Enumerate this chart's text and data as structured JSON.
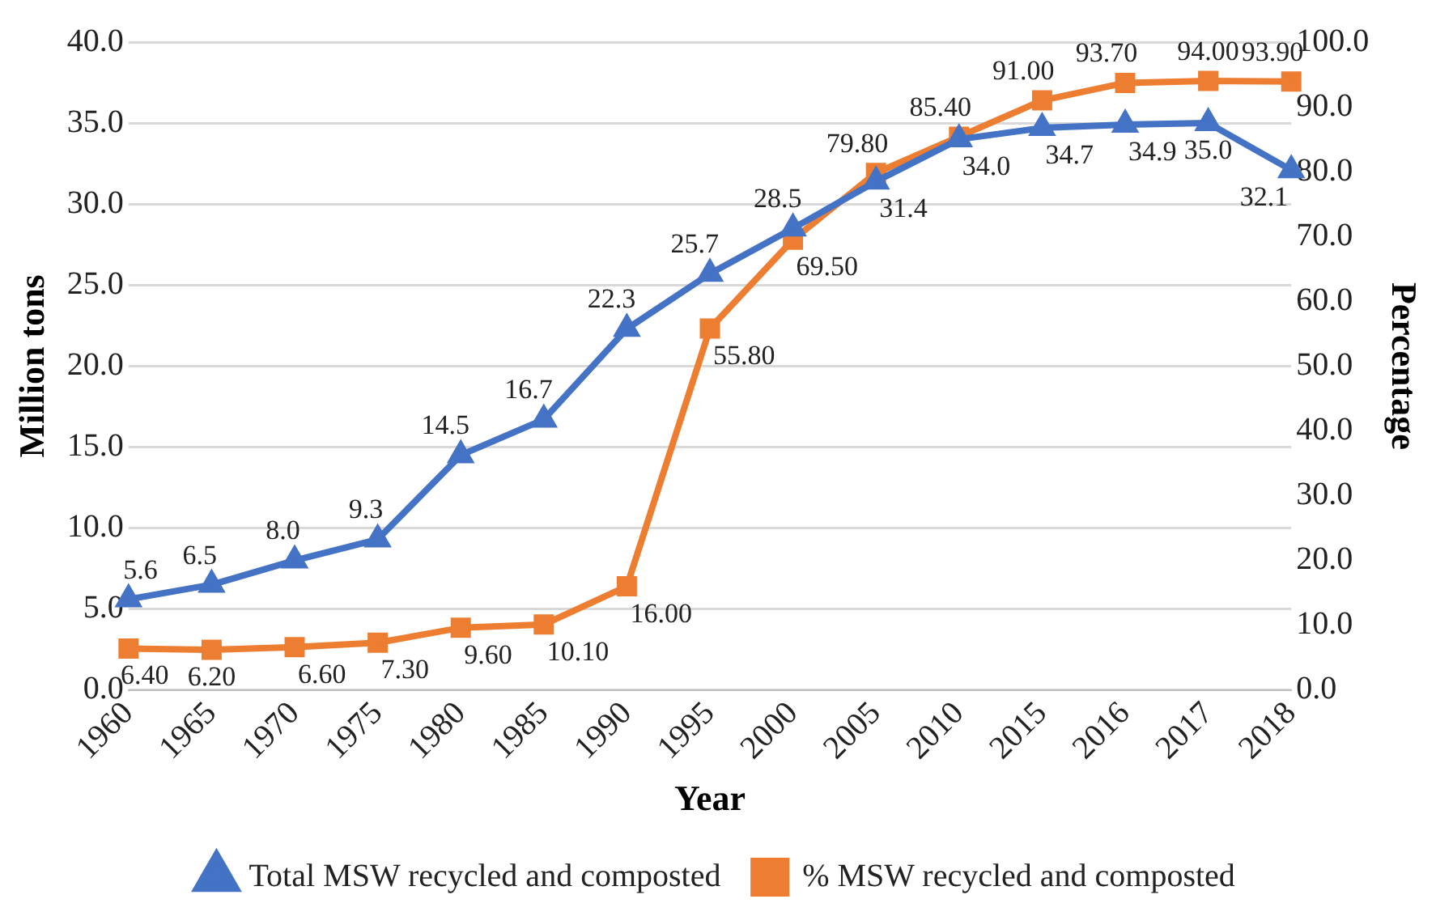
{
  "chart_data": {
    "type": "line",
    "xlabel": "Year",
    "ylabel": "Million tons",
    "y2label": "Percentage",
    "categories": [
      "1960",
      "1965",
      "1970",
      "1975",
      "1980",
      "1985",
      "1990",
      "1995",
      "2000",
      "2005",
      "2010",
      "2015",
      "2016",
      "2017",
      "2018"
    ],
    "series": [
      {
        "name": "Total MSW recycled and composted",
        "color": "#4472c4",
        "axis": "y",
        "marker": "triangle",
        "values": [
          5.6,
          6.5,
          8.0,
          9.3,
          14.5,
          16.7,
          22.3,
          25.7,
          28.5,
          31.4,
          34.0,
          34.7,
          34.9,
          35.0,
          32.1
        ],
        "value_labels": [
          "5.6",
          "6.5",
          "8.0",
          "9.3",
          "14.5",
          "16.7",
          "22.3",
          "25.7",
          "28.5",
          "31.4",
          "34.0",
          "34.7",
          "34.9",
          "35.0",
          "32.1"
        ]
      },
      {
        "name": "% MSW recycled and composted",
        "color": "#ed7d31",
        "axis": "y2",
        "marker": "square",
        "values": [
          6.4,
          6.2,
          6.6,
          7.3,
          9.6,
          10.1,
          16.0,
          55.8,
          69.5,
          79.8,
          85.4,
          91.0,
          93.7,
          94.0,
          93.9
        ],
        "value_labels": [
          "6.40",
          "6.20",
          "6.60",
          "7.30",
          "9.60",
          "10.10",
          "16.00",
          "55.80",
          "69.50",
          "79.80",
          "85.40",
          "91.00",
          "93.70",
          "94.00",
          "93.90"
        ]
      }
    ],
    "ylim": [
      0,
      40
    ],
    "yticks": [
      {
        "value": 0,
        "label": "0.0"
      },
      {
        "value": 5,
        "label": "5.0"
      },
      {
        "value": 10,
        "label": "10.0"
      },
      {
        "value": 15,
        "label": "15.0"
      },
      {
        "value": 20,
        "label": "20.0"
      },
      {
        "value": 25,
        "label": "25.0"
      },
      {
        "value": 30,
        "label": "30.0"
      },
      {
        "value": 35,
        "label": "35.0"
      },
      {
        "value": 40,
        "label": "40.0"
      }
    ],
    "y2lim": [
      0,
      100
    ],
    "y2ticks": [
      {
        "value": 0,
        "label": "0.0"
      },
      {
        "value": 10,
        "label": "10.0"
      },
      {
        "value": 20,
        "label": "20.0"
      },
      {
        "value": 30,
        "label": "30.0"
      },
      {
        "value": 40,
        "label": "40.0"
      },
      {
        "value": 50,
        "label": "50.0"
      },
      {
        "value": 60,
        "label": "60.0"
      },
      {
        "value": 70,
        "label": "70.0"
      },
      {
        "value": 80,
        "label": "80.0"
      },
      {
        "value": 90,
        "label": "90.0"
      },
      {
        "value": 100,
        "label": "100.0"
      }
    ],
    "grid": "y",
    "legend": "bottom",
    "line_style": "solid"
  }
}
